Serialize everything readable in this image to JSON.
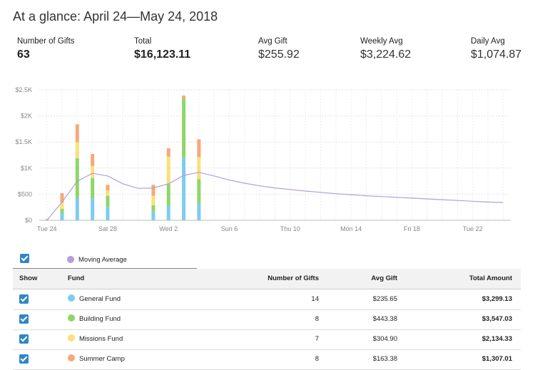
{
  "header": {
    "title": "At a glance: April 24—May 24, 2018"
  },
  "stats": [
    {
      "label": "Number of Gifts",
      "value": "63"
    },
    {
      "label": "Total",
      "value": "$16,123.11"
    },
    {
      "label": "Avg Gift",
      "value": "$255.92"
    },
    {
      "label": "Weekly Avg",
      "value": "$3,224.62"
    },
    {
      "label": "Daily Avg",
      "value": "$1,074.87"
    }
  ],
  "chart_data": {
    "type": "bar",
    "stacked": true,
    "y_ticks": [
      "$0",
      "$500",
      "$1K",
      "$1.5K",
      "$2K",
      "$2.5K"
    ],
    "ylim": [
      0,
      2500
    ],
    "x_ticks": [
      {
        "label": "Tue 24",
        "day": 0
      },
      {
        "label": "Sat 28",
        "day": 4
      },
      {
        "label": "Wed 2",
        "day": 8
      },
      {
        "label": "Sun 6",
        "day": 12
      },
      {
        "label": "Thu 10",
        "day": 16
      },
      {
        "label": "Mon 14",
        "day": 20
      },
      {
        "label": "Fri 18",
        "day": 24
      },
      {
        "label": "Tue 22",
        "day": 28
      }
    ],
    "grid": true,
    "series": [
      {
        "name": "General Fund",
        "color": "#7ecbf2"
      },
      {
        "name": "Building Fund",
        "color": "#8fd668"
      },
      {
        "name": "Missions Fund",
        "color": "#fbe07a"
      },
      {
        "name": "Summer Camp",
        "color": "#f5a97a"
      }
    ],
    "bars": [
      {
        "day": 0,
        "values": [
          0,
          0,
          0,
          20
        ]
      },
      {
        "day": 1,
        "values": [
          130,
          90,
          120,
          180
        ]
      },
      {
        "day": 2,
        "values": [
          430,
          760,
          310,
          340
        ]
      },
      {
        "day": 3,
        "values": [
          420,
          390,
          230,
          230
        ]
      },
      {
        "day": 4,
        "values": [
          250,
          220,
          100,
          110
        ]
      },
      {
        "day": 7,
        "values": [
          170,
          120,
          180,
          210
        ]
      },
      {
        "day": 8,
        "values": [
          280,
          420,
          520,
          160
        ]
      },
      {
        "day": 9,
        "values": [
          1200,
          1130,
          0,
          60
        ]
      },
      {
        "day": 10,
        "values": [
          320,
          470,
          420,
          340
        ]
      }
    ],
    "moving_average": {
      "name": "Moving Average",
      "color": "#b39ddb",
      "points": [
        [
          0,
          0
        ],
        [
          1,
          350
        ],
        [
          2,
          750
        ],
        [
          3,
          900
        ],
        [
          4,
          850
        ],
        [
          5,
          700
        ],
        [
          6,
          610
        ],
        [
          7,
          620
        ],
        [
          8,
          700
        ],
        [
          9,
          860
        ],
        [
          10,
          920
        ],
        [
          11,
          850
        ],
        [
          12,
          770
        ],
        [
          13,
          710
        ],
        [
          14,
          660
        ],
        [
          15,
          620
        ],
        [
          16,
          590
        ],
        [
          17,
          560
        ],
        [
          18,
          535
        ],
        [
          19,
          510
        ],
        [
          20,
          490
        ],
        [
          21,
          470
        ],
        [
          22,
          455
        ],
        [
          23,
          440
        ],
        [
          24,
          425
        ],
        [
          25,
          410
        ],
        [
          26,
          395
        ],
        [
          27,
          380
        ],
        [
          28,
          365
        ],
        [
          29,
          350
        ],
        [
          30,
          340
        ]
      ]
    }
  },
  "legend": {
    "moving_average_label": "Moving Average",
    "moving_average_color": "#b39ddb"
  },
  "table": {
    "headers": {
      "show": "Show",
      "fund": "Fund",
      "num": "Number of Gifts",
      "avg": "Avg Gift",
      "total": "Total Amount"
    },
    "rows": [
      {
        "fund": "General Fund",
        "color": "#7ecbf2",
        "num": "14",
        "avg": "$235.65",
        "total": "$3,299.13"
      },
      {
        "fund": "Building Fund",
        "color": "#8fd668",
        "num": "8",
        "avg": "$443.38",
        "total": "$3,547.03"
      },
      {
        "fund": "Missions Fund",
        "color": "#fbe07a",
        "num": "7",
        "avg": "$304.90",
        "total": "$2,134.33"
      },
      {
        "fund": "Summer Camp",
        "color": "#f5a97a",
        "num": "8",
        "avg": "$163.38",
        "total": "$1,307.01"
      }
    ]
  }
}
